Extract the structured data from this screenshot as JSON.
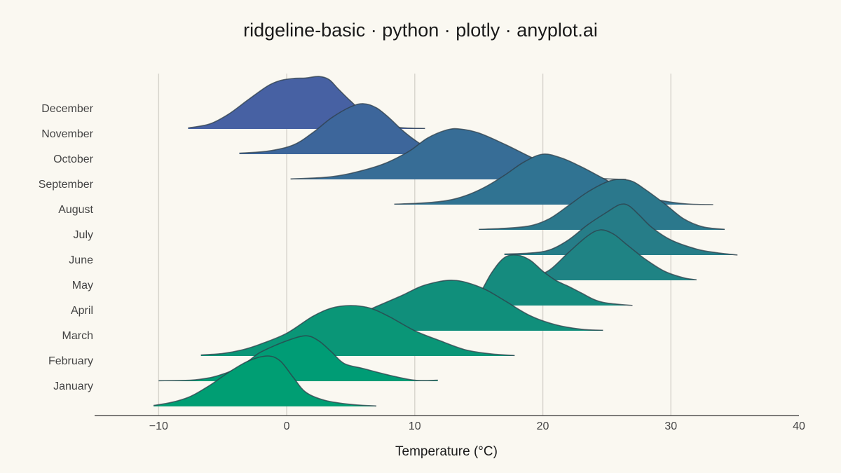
{
  "chart_data": {
    "type": "area",
    "subtype": "ridgeline",
    "title": "ridgeline-basic · python · plotly · anyplot.ai",
    "xlabel": "Temperature (°C)",
    "ylabel": "",
    "xlim": [
      -15,
      40
    ],
    "xticks": [
      -10,
      0,
      10,
      20,
      30,
      40
    ],
    "xtick_labels": [
      "−10",
      "0",
      "10",
      "20",
      "30",
      "40"
    ],
    "grid": "vertical",
    "legend": "none",
    "colors": {
      "background": "#FAF8F1",
      "grid": "#D6D3CC",
      "axis": "#333333",
      "outline": "#2F3F4A",
      "ramp": [
        "#009E73",
        "#009C75",
        "#0A9677",
        "#108F7B",
        "#158B7E",
        "#1F8384",
        "#267D88",
        "#2B788C",
        "#307392",
        "#376D96",
        "#3D669B",
        "#4761A3"
      ]
    },
    "categories": [
      "January",
      "February",
      "March",
      "April",
      "May",
      "June",
      "July",
      "August",
      "September",
      "October",
      "November",
      "December"
    ],
    "series": [
      {
        "name": "January",
        "x": [
          -10.4,
          -9,
          -7.5,
          -6,
          -4.5,
          -3,
          -1.5,
          -0.5,
          0.5,
          1.5,
          3,
          5,
          7
        ],
        "y": [
          0.02,
          0.08,
          0.2,
          0.42,
          0.68,
          0.9,
          1.0,
          0.9,
          0.58,
          0.28,
          0.12,
          0.04,
          0.01
        ]
      },
      {
        "name": "February",
        "x": [
          -10,
          -7.5,
          -6,
          -5,
          -4,
          -3,
          -2,
          0,
          1.5,
          2.5,
          3.5,
          4.5,
          6,
          8,
          10,
          11.8
        ],
        "y": [
          0.01,
          0.02,
          0.07,
          0.14,
          0.24,
          0.4,
          0.58,
          0.8,
          0.9,
          0.8,
          0.58,
          0.35,
          0.25,
          0.12,
          0.02,
          0.02
        ]
      },
      {
        "name": "March",
        "x": [
          -6.7,
          -5,
          -3.5,
          -2,
          0,
          2,
          3.5,
          5,
          6.5,
          8,
          10,
          12,
          14,
          16,
          17.8
        ],
        "y": [
          0.02,
          0.05,
          0.12,
          0.24,
          0.45,
          0.78,
          0.95,
          1.0,
          0.95,
          0.78,
          0.5,
          0.3,
          0.12,
          0.04,
          0.01
        ]
      },
      {
        "name": "April",
        "x": [
          1,
          3,
          5,
          7,
          9,
          10.5,
          12,
          13,
          14,
          15.5,
          17,
          19,
          21,
          23,
          24.7
        ],
        "y": [
          0.02,
          0.08,
          0.25,
          0.48,
          0.7,
          0.88,
          0.98,
          1.0,
          0.96,
          0.82,
          0.6,
          0.3,
          0.12,
          0.03,
          0.01
        ]
      },
      {
        "name": "May",
        "x": [
          12.9,
          14,
          15,
          16,
          17,
          18,
          19,
          20,
          21,
          22,
          23,
          24,
          25,
          27
        ],
        "y": [
          0.02,
          0.06,
          0.22,
          0.65,
          0.95,
          1.0,
          0.9,
          0.68,
          0.5,
          0.38,
          0.25,
          0.12,
          0.05,
          0.0
        ]
      },
      {
        "name": "June",
        "x": [
          17,
          19,
          20.5,
          22,
          23.5,
          24.5,
          25.5,
          26.5,
          28,
          29.5,
          31,
          32
        ],
        "y": [
          0.01,
          0.05,
          0.2,
          0.55,
          0.88,
          1.0,
          0.92,
          0.72,
          0.42,
          0.18,
          0.05,
          0.01
        ]
      },
      {
        "name": "July",
        "x": [
          17,
          19,
          20.5,
          22,
          23.5,
          25,
          26,
          26.7,
          27.5,
          28.5,
          30,
          32,
          33.5,
          35.2
        ],
        "y": [
          0.02,
          0.04,
          0.1,
          0.3,
          0.6,
          0.85,
          1.0,
          0.98,
          0.8,
          0.55,
          0.3,
          0.12,
          0.05,
          0.0
        ]
      },
      {
        "name": "August",
        "x": [
          15,
          17,
          19,
          20.5,
          22,
          23.5,
          25,
          26,
          27,
          28,
          29.5,
          31,
          32.5,
          34.2
        ],
        "y": [
          0.01,
          0.03,
          0.08,
          0.22,
          0.48,
          0.75,
          0.95,
          1.0,
          0.96,
          0.8,
          0.52,
          0.22,
          0.06,
          0.01
        ]
      },
      {
        "name": "September",
        "x": [
          8.4,
          10.5,
          12.5,
          14,
          15.5,
          17,
          18.5,
          20,
          21.5,
          23,
          24.5,
          26,
          28,
          30,
          31.5,
          33.3
        ],
        "y": [
          0.01,
          0.03,
          0.08,
          0.18,
          0.35,
          0.58,
          0.84,
          1.0,
          0.92,
          0.75,
          0.55,
          0.35,
          0.15,
          0.05,
          0.01,
          0.0
        ]
      },
      {
        "name": "October",
        "x": [
          0.3,
          3,
          5,
          7.5,
          9.5,
          11,
          12.5,
          13.5,
          15,
          17,
          19,
          21,
          22.5,
          24.5,
          26.5
        ],
        "y": [
          0.01,
          0.04,
          0.12,
          0.3,
          0.55,
          0.82,
          0.98,
          1.0,
          0.92,
          0.7,
          0.45,
          0.22,
          0.1,
          0.02,
          0.0
        ]
      },
      {
        "name": "November",
        "x": [
          -3.7,
          -1.5,
          0.5,
          2,
          3.5,
          5,
          6,
          7,
          8,
          9,
          10,
          11,
          12.5,
          14
        ],
        "y": [
          0.02,
          0.06,
          0.18,
          0.42,
          0.72,
          0.94,
          1.0,
          0.92,
          0.72,
          0.48,
          0.28,
          0.13,
          0.05,
          0.01
        ]
      },
      {
        "name": "December",
        "x": [
          -7.7,
          -6,
          -4.5,
          -3,
          -1.5,
          -0.5,
          0.5,
          1.5,
          2.5,
          3.3,
          4,
          5,
          6.5,
          8.5,
          10.8
        ],
        "y": [
          0.02,
          0.1,
          0.3,
          0.58,
          0.85,
          0.96,
          1.0,
          1.01,
          1.04,
          0.98,
          0.8,
          0.55,
          0.22,
          0.04,
          0.01
        ]
      }
    ]
  }
}
